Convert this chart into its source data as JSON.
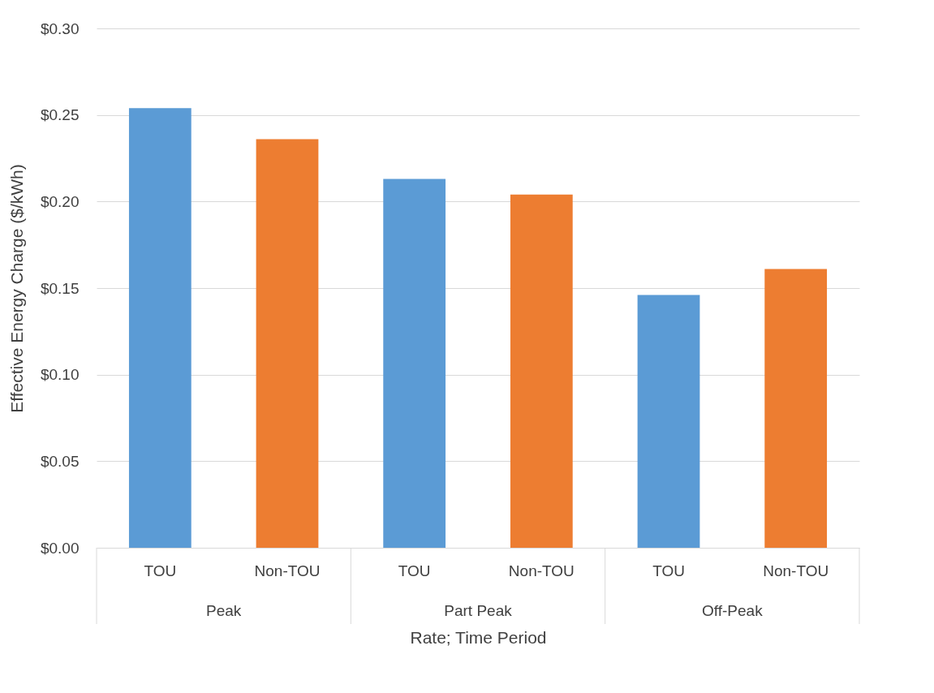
{
  "chart_data": {
    "type": "bar",
    "xlabel": "Rate; Time Period",
    "ylabel": "Effective Energy Charge ($/kWh)",
    "categories": [
      "TOU",
      "Non-TOU",
      "TOU",
      "Non-TOU",
      "TOU",
      "Non-TOU"
    ],
    "values": [
      0.254,
      0.236,
      0.213,
      0.204,
      0.146,
      0.161
    ],
    "colors": [
      "#5b9bd5",
      "#ed7d31",
      "#5b9bd5",
      "#ed7d31",
      "#5b9bd5",
      "#ed7d31"
    ],
    "annotations": [
      "Peak",
      "Part Peak",
      "Off-Peak"
    ],
    "ylim": [
      0,
      0.3
    ],
    "yticks": [
      {
        "value": 0,
        "label": "$0.00"
      },
      {
        "value": 0.05,
        "label": "$0.05"
      },
      {
        "value": 0.1,
        "label": "$0.10"
      },
      {
        "value": 0.15,
        "label": "$0.15"
      },
      {
        "value": 0.2,
        "label": "$0.20"
      },
      {
        "value": 0.25,
        "label": "$0.25"
      },
      {
        "value": 0.3,
        "label": "$0.30"
      }
    ],
    "grid": "y"
  }
}
